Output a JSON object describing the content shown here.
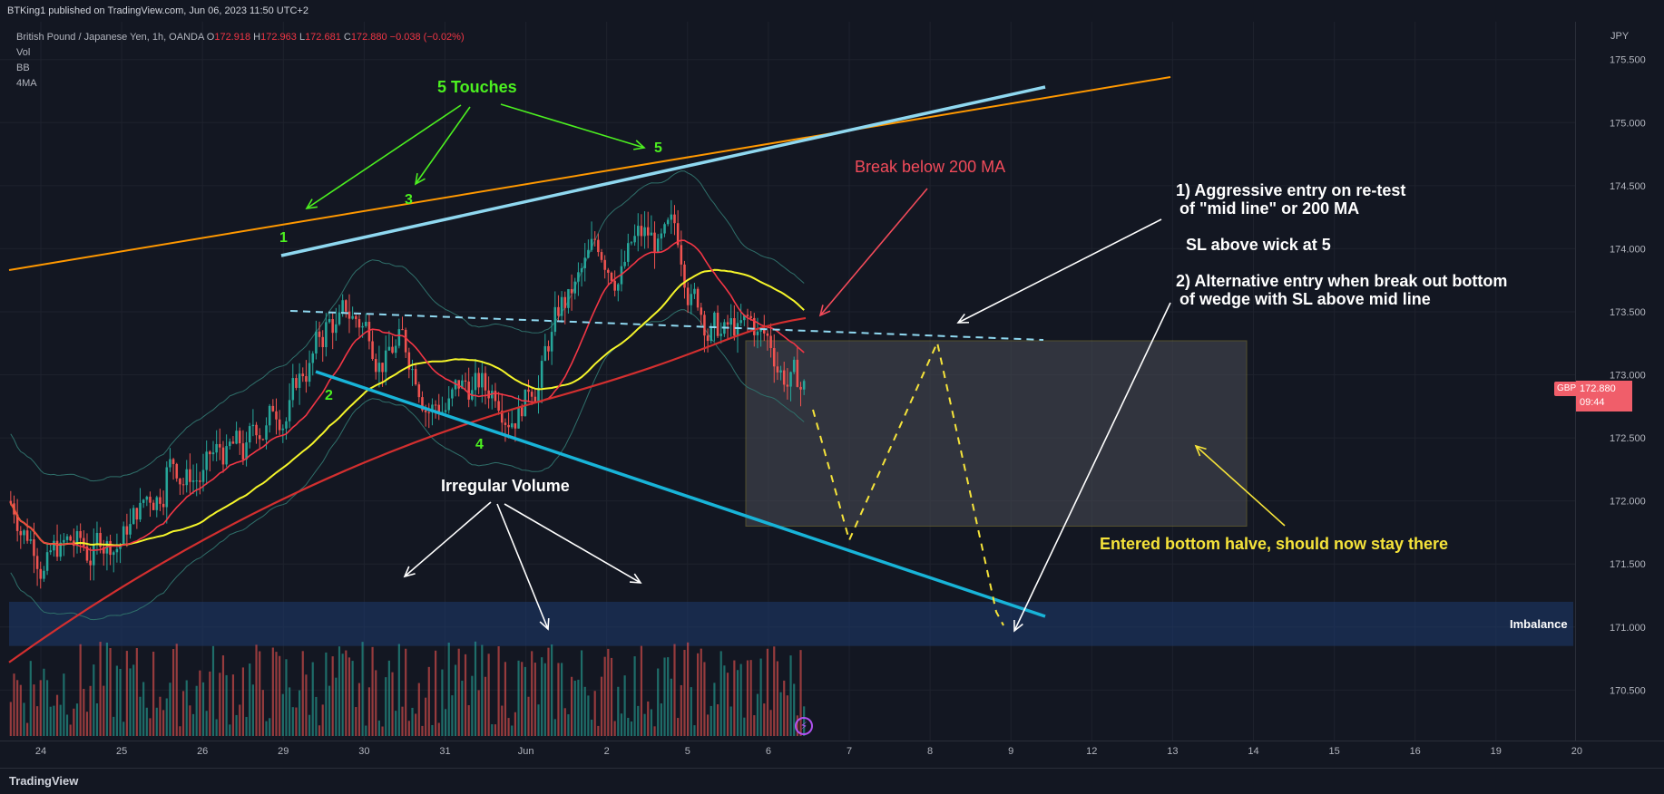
{
  "header": {
    "publisher": "BTKing1 published on TradingView.com, Jun 06, 2023 11:50 UTC+2",
    "symbol_name": "British Pound / Japanese Yen, 1h, OANDA",
    "open_label": "O",
    "open": "172.918",
    "high_label": "H",
    "high": "172.963",
    "low_label": "L",
    "low": "172.681",
    "close_label": "C",
    "close": "172.880",
    "change": "−0.038 (−0.02%)",
    "indicators": [
      "Vol",
      "BB",
      "4MA"
    ]
  },
  "price_axis": {
    "currency": "JPY",
    "last_price": "172.880",
    "countdown": "09:44",
    "symbol_tag": "GBPJPY"
  },
  "footer": {
    "brand": "TradingView"
  },
  "colors": {
    "background": "#131722",
    "up": "#26a69a",
    "down": "#ef5350",
    "ma_yellow": "#f5f52a",
    "ma_red": "#f23645",
    "ma200": "#d32f2f",
    "orange_line": "#ff9800",
    "light_blue_line": "#8fd8f0",
    "teal_line": "#18b4d8",
    "annotation_green": "#4cf020",
    "annotation_red": "#f24b5a",
    "annotation_yellow": "#f5e33a"
  },
  "chart_data": {
    "type": "candlestick",
    "symbol": "GBPJPY",
    "timeframe": "1h",
    "ylim": [
      170.1,
      175.8
    ],
    "y_ticks": [
      170.5,
      171.0,
      171.5,
      172.0,
      172.5,
      173.0,
      173.5,
      174.0,
      174.5,
      175.0,
      175.5
    ],
    "y_tick_labels": [
      "170.500",
      "171.000",
      "171.500",
      "172.000",
      "172.500",
      "173.000",
      "173.500",
      "174.000",
      "174.500",
      "175.000",
      "175.500"
    ],
    "x_tick_labels": [
      "24",
      "25",
      "26",
      "29",
      "30",
      "31",
      "Jun",
      "2",
      "5",
      "6",
      "7",
      "8",
      "9",
      "12",
      "13",
      "14",
      "15",
      "16",
      "19",
      "20"
    ],
    "last_price": 172.88,
    "trading_days": 10,
    "day_closes": [
      171.6,
      172.2,
      172.35,
      173.35,
      173.25,
      172.9,
      173.6,
      174.1,
      173.3,
      172.88
    ],
    "bands": [
      "BB",
      "MA"
    ],
    "annotations": {
      "touches_title": "5 Touches",
      "touch_labels": [
        "1",
        "2",
        "3",
        "4",
        "5"
      ],
      "break_text": "Break below 200 MA",
      "entry1_line1": "1) Aggressive entry on re-test",
      "entry1_line2": "of \"mid line\" or 200 MA",
      "sl_text": "SL above wick at 5",
      "entry2_line1": "2) Alternative entry when break out bottom",
      "entry2_line2": "of wedge with SL above mid line",
      "irregular_volume": "Irregular Volume",
      "entered_text": "Entered bottom halve, should now stay there",
      "imbalance": "Imbalance"
    },
    "imbalance_zone": [
      170.85,
      171.2
    ],
    "projection_box": [
      171.8,
      173.27
    ]
  }
}
